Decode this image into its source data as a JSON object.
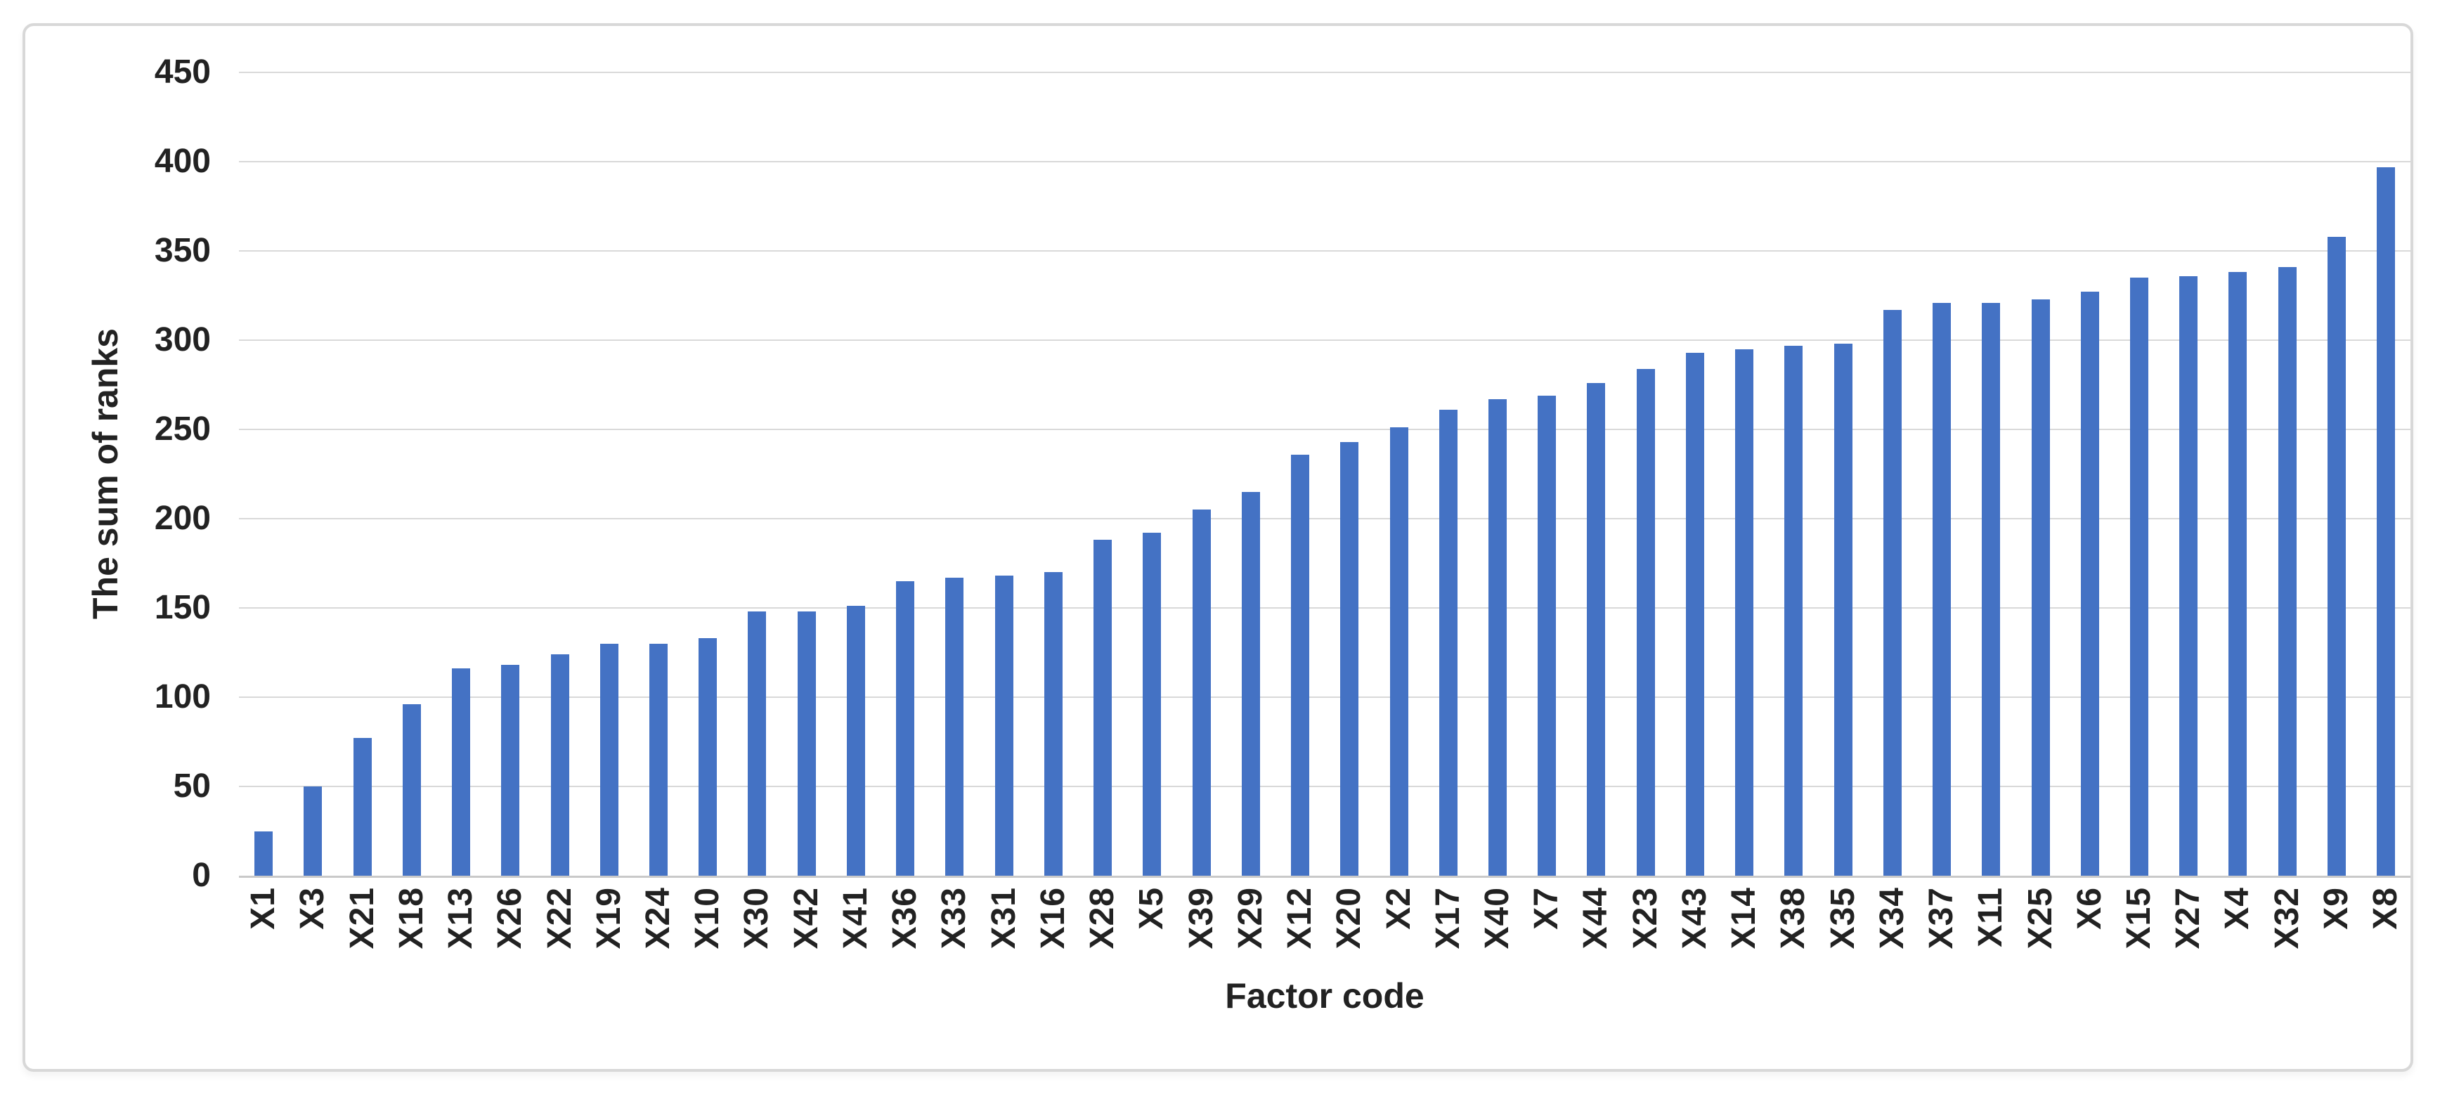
{
  "chart_data": {
    "type": "bar",
    "title": "",
    "xlabel": "Factor code",
    "ylabel": "The sum of ranks",
    "categories": [
      "X1",
      "X3",
      "X21",
      "X18",
      "X13",
      "X26",
      "X22",
      "X19",
      "X24",
      "X10",
      "X30",
      "X42",
      "X41",
      "X36",
      "X33",
      "X31",
      "X16",
      "X28",
      "X5",
      "X39",
      "X29",
      "X12",
      "X20",
      "X2",
      "X17",
      "X40",
      "X7",
      "X44",
      "X23",
      "X43",
      "X14",
      "X38",
      "X35",
      "X34",
      "X37",
      "X11",
      "X25",
      "X6",
      "X15",
      "X27",
      "X4",
      "X32",
      "X9",
      "X8"
    ],
    "values": [
      25,
      50,
      77,
      96,
      116,
      118,
      124,
      130,
      130,
      133,
      148,
      148,
      151,
      165,
      167,
      168,
      170,
      188,
      192,
      205,
      215,
      236,
      243,
      251,
      261,
      267,
      269,
      276,
      284,
      293,
      295,
      297,
      298,
      317,
      321,
      321,
      323,
      327,
      335,
      336,
      338,
      341,
      358,
      397
    ],
    "ylim": [
      0,
      450
    ],
    "yticks": [
      0,
      50,
      100,
      150,
      200,
      250,
      300,
      350,
      400,
      450
    ],
    "grid": "horizontal",
    "legend_position": "none",
    "colors": {
      "bar": "#4472C4",
      "gridline": "#D9D9D9",
      "axis_line": "#C9C9C9",
      "text": "#222222",
      "frame_border": "#D8D8D8",
      "background": "#FFFFFF"
    }
  }
}
